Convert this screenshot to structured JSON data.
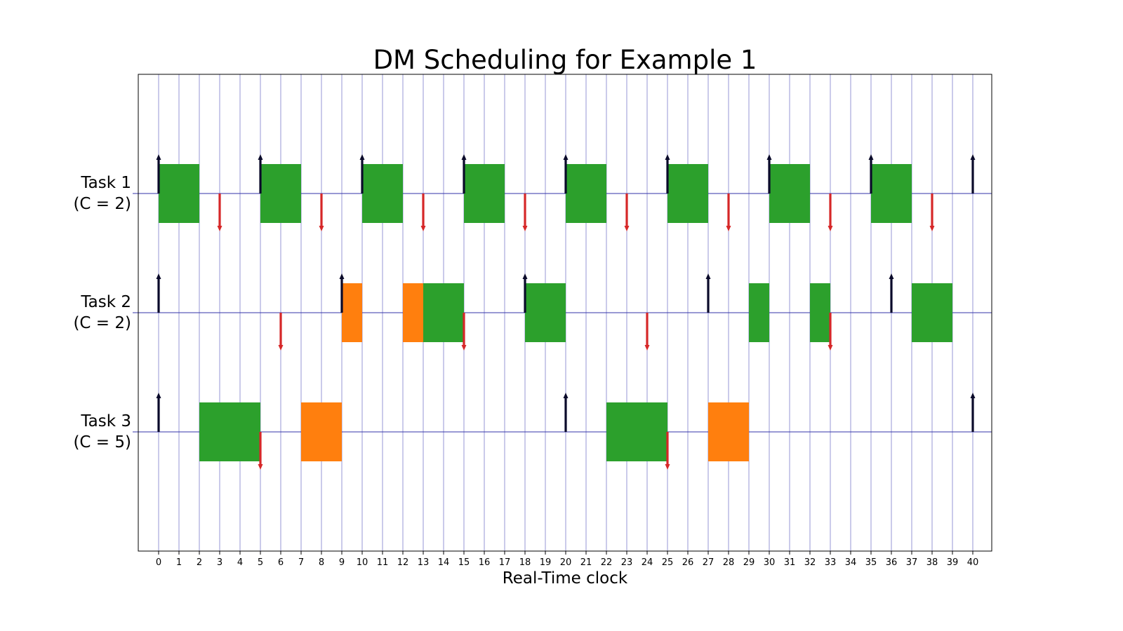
{
  "chart_data": {
    "type": "gantt",
    "title": "DM Scheduling for Example 1",
    "xlabel": "Real-Time clock",
    "ylabel": "",
    "xlim": [
      -1,
      41
    ],
    "x_ticks": [
      0,
      1,
      2,
      3,
      4,
      5,
      6,
      7,
      8,
      9,
      10,
      11,
      12,
      13,
      14,
      15,
      16,
      17,
      18,
      19,
      20,
      21,
      22,
      23,
      24,
      25,
      26,
      27,
      28,
      29,
      30,
      31,
      32,
      33,
      34,
      35,
      36,
      37,
      38,
      39,
      40
    ],
    "grid": "vertical",
    "colors": {
      "executing": "#2ca02c",
      "preempted_job": "#ff7f0e",
      "release_arrow": "#0a0a2a",
      "deadline_arrow": "#d62728",
      "axis_line": "#3333aa"
    },
    "tasks": [
      {
        "label_line1": "Task 1",
        "label_line2": "(C = 2)",
        "releases": [
          0,
          5,
          10,
          15,
          20,
          25,
          30,
          35,
          40
        ],
        "deadlines": [
          3,
          8,
          13,
          18,
          23,
          28,
          33,
          38
        ],
        "segments": [
          {
            "start": 0,
            "end": 2,
            "color": "#2ca02c"
          },
          {
            "start": 5,
            "end": 7,
            "color": "#2ca02c"
          },
          {
            "start": 10,
            "end": 12,
            "color": "#2ca02c"
          },
          {
            "start": 15,
            "end": 17,
            "color": "#2ca02c"
          },
          {
            "start": 20,
            "end": 22,
            "color": "#2ca02c"
          },
          {
            "start": 25,
            "end": 27,
            "color": "#2ca02c"
          },
          {
            "start": 30,
            "end": 32,
            "color": "#2ca02c"
          },
          {
            "start": 35,
            "end": 37,
            "color": "#2ca02c"
          }
        ]
      },
      {
        "label_line1": "Task 2",
        "label_line2": "(C = 2)",
        "releases": [
          0,
          9,
          18,
          27,
          36
        ],
        "deadlines": [
          6,
          15,
          24,
          33
        ],
        "segments": [
          {
            "start": 9,
            "end": 10,
            "color": "#ff7f0e"
          },
          {
            "start": 12,
            "end": 13,
            "color": "#ff7f0e"
          },
          {
            "start": 13,
            "end": 15,
            "color": "#2ca02c"
          },
          {
            "start": 18,
            "end": 20,
            "color": "#2ca02c"
          },
          {
            "start": 29,
            "end": 30,
            "color": "#2ca02c"
          },
          {
            "start": 32,
            "end": 33,
            "color": "#2ca02c"
          },
          {
            "start": 37,
            "end": 39,
            "color": "#2ca02c"
          }
        ]
      },
      {
        "label_line1": "Task 3",
        "label_line2": "(C = 5)",
        "releases": [
          0,
          20,
          40
        ],
        "deadlines": [
          5,
          25
        ],
        "segments": [
          {
            "start": 2,
            "end": 5,
            "color": "#2ca02c"
          },
          {
            "start": 7,
            "end": 9,
            "color": "#ff7f0e"
          },
          {
            "start": 22,
            "end": 25,
            "color": "#2ca02c"
          },
          {
            "start": 27,
            "end": 29,
            "color": "#ff7f0e"
          }
        ]
      }
    ]
  }
}
